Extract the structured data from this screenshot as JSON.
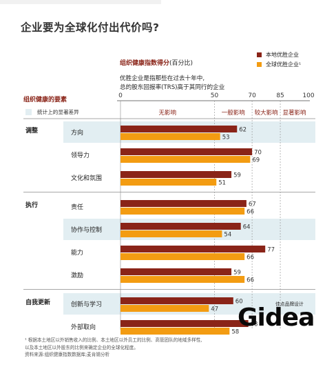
{
  "title": "企业要为全球化付出代价吗?",
  "subtitle": {
    "strong": "组织健康指数得分",
    "rest": "(百分比)"
  },
  "legend": [
    {
      "label": "本地优胜企业",
      "color": "#8a2418"
    },
    {
      "label": "全球优胜企业¹",
      "color": "#f39c12"
    }
  ],
  "description": [
    "优胜企业是指那些在过去十年中,",
    "总的股东回报率(TRS)高于其同行的企业"
  ],
  "left_header": "组织健康的要素",
  "significance_note": "统计上的显著差异",
  "footnote": [
    "¹ 根据本土地区以外销售收入的比例、本土地区以外员工的比例、高管团队的地域多样性,",
    "以及本土地区以外股东的比例来确定企业的全球化程度。",
    "资料来源:组织健康指数数据库;麦肯锡分析"
  ],
  "logo": {
    "tagline": "佳点品牌设计",
    "word": "Gidea"
  },
  "chart_data": {
    "type": "bar",
    "orientation": "horizontal",
    "xlim": [
      0,
      100
    ],
    "ticks": [
      0,
      50,
      70,
      85,
      100
    ],
    "zones": [
      {
        "label": "无影响",
        "from": 0,
        "to": 50
      },
      {
        "label": "一般影响",
        "from": 50,
        "to": 70
      },
      {
        "label": "较大影响",
        "from": 70,
        "to": 85
      },
      {
        "label": "显著影响",
        "from": 85,
        "to": 100
      }
    ],
    "colors": {
      "local": "#8a2418",
      "global": "#f39c12",
      "significant": "#e2eef2",
      "divider": "#8a8a8a"
    },
    "series": [
      {
        "name": "本地优胜企业",
        "key": "local"
      },
      {
        "name": "全球优胜企业¹",
        "key": "global"
      }
    ],
    "groups": [
      {
        "name": "调整",
        "items": [
          {
            "label": "方向",
            "local": 62,
            "global": 53,
            "significant": true
          },
          {
            "label": "领导力",
            "local": 70,
            "global": 69,
            "significant": false
          },
          {
            "label": "文化和氛围",
            "local": 59,
            "global": 51,
            "significant": false
          }
        ]
      },
      {
        "name": "执行",
        "items": [
          {
            "label": "责任",
            "local": 67,
            "global": 66,
            "significant": false
          },
          {
            "label": "协作与控制",
            "local": 64,
            "global": 54,
            "significant": true
          },
          {
            "label": "能力",
            "local": 77,
            "global": 66,
            "significant": false
          },
          {
            "label": "激励",
            "local": 59,
            "global": 66,
            "significant": false
          }
        ]
      },
      {
        "name": "自我更新",
        "items": [
          {
            "label": "创新与学习",
            "local": 60,
            "global": 47,
            "significant": true
          },
          {
            "label": "外部取向",
            "local": 68,
            "global": 58,
            "significant": false
          }
        ]
      }
    ]
  }
}
